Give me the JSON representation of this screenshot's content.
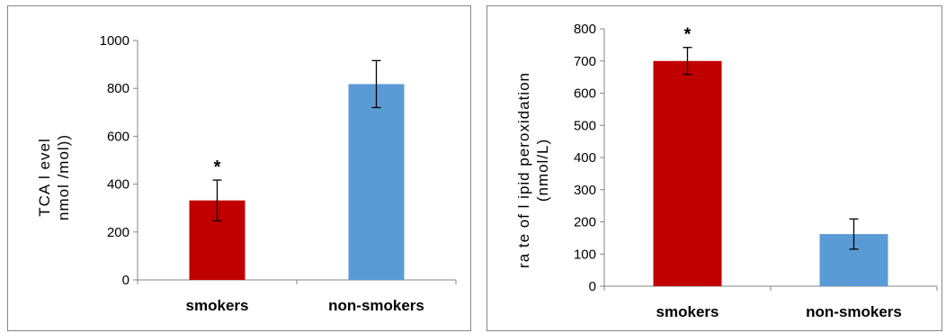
{
  "chart_data": [
    {
      "type": "bar",
      "categories": [
        "smokers",
        "non-smokers"
      ],
      "values": [
        332,
        818
      ],
      "errors": [
        85,
        98
      ],
      "significance": [
        "*",
        ""
      ],
      "colors": [
        "#c00000",
        "#5b9bd5"
      ],
      "title": "",
      "xlabel": "",
      "ylabel_lines": [
        "TCA l evel",
        "nmol /mol))"
      ],
      "ylim": [
        0,
        1000
      ],
      "yticks": [
        0,
        200,
        400,
        600,
        800,
        1000
      ],
      "grid": false
    },
    {
      "type": "bar",
      "categories": [
        "smokers",
        "non-smokers"
      ],
      "values": [
        700,
        162
      ],
      "errors": [
        42,
        47
      ],
      "significance": [
        "*",
        ""
      ],
      "colors": [
        "#c00000",
        "#5b9bd5"
      ],
      "title": "",
      "xlabel": "",
      "ylabel_lines": [
        "ra te of l ipid peroxidation",
        "(nmol/L)"
      ],
      "ylim": [
        0,
        800
      ],
      "yticks": [
        0,
        100,
        200,
        300,
        400,
        500,
        600,
        700,
        800
      ],
      "grid": false
    }
  ]
}
